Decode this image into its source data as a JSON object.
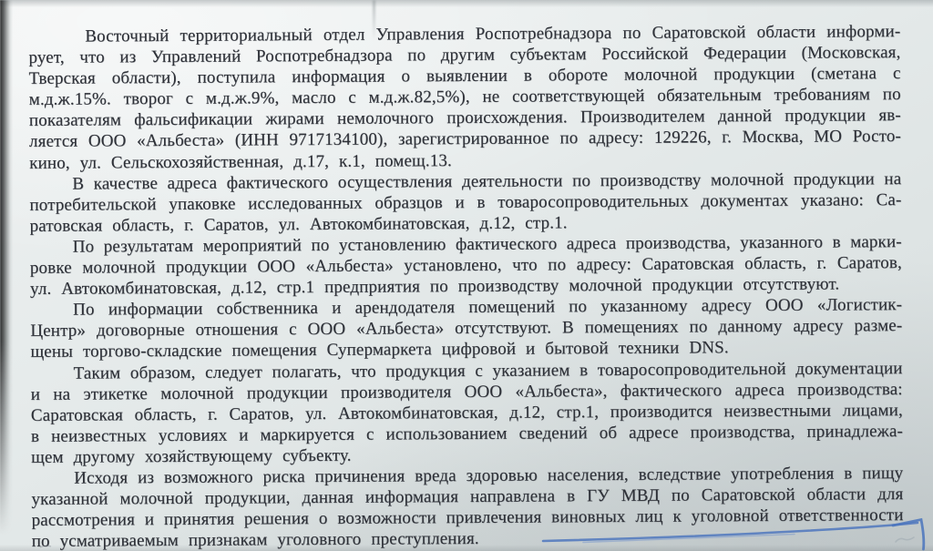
{
  "page": {
    "kind": "scanned-letter-photo",
    "paper_color": "#e4e9e9",
    "ink_color": "#2e3138",
    "pen_color": "#4a74bd"
  },
  "document": {
    "language": "ru",
    "paragraphs": [
      [
        "Восточный территориальный отдел Управления Роспотребнадзора по Саратовской области информи-",
        "рует, что из Управлений Роспотребнадзора по другим субъектам Российской Федерации (Московская,",
        "Тверская области), поступила информация о выявлении в обороте молочной продукции (сметана с",
        "м.д.ж.15%. творог с м.д.ж.9%, масло с м.д.ж.82,5%), не соответствующей обязательным требованиям по",
        "показателям фальсификации жирами немолочного происхождения. Производителем данной продукции яв-",
        "ляется ООО «Альбеста» (ИНН 9717134100), зарегистрированное по адресу: 129226, г. Москва, МО Росто-",
        "кино, ул. Сельскохозяйственная, д.17, к.1, помещ.13."
      ],
      [
        "В качестве адреса фактического осуществления деятельности по производству молочной продукции на",
        "потребительской упаковке исследованных образцов и в товаросопроводительных документах указано: Са-",
        "ратовская область, г. Саратов, ул. Автокомбинатовская, д.12, стр.1."
      ],
      [
        "По результатам мероприятий по установлению фактического адреса производства, указанного в марки-",
        "ровке молочной продукции ООО «Альбеста» установлено, что по адресу: Саратовская область, г. Саратов,",
        "ул. Автокомбинатовская, д.12, стр.1 предприятия по производству молочной продукции отсутствуют."
      ],
      [
        "По информации собственника и арендодателя помещений по указанному адресу ООО «Логистик-",
        "Центр» договорные отношения с ООО «Альбеста» отсутствуют. В помещениях по данному адресу разме-",
        "щены торгово-складские помещения Супермаркета цифровой и бытовой техники DNS."
      ],
      [
        "Таким образом, следует полагать, что продукция с указанием в товаросопроводительной документации",
        "и на этикетке молочной продукции производителя ООО «Альбеста», фактического адреса производства:",
        "Саратовская область, г. Саратов, ул. Автокомбинатовская, д.12, стр.1, производится неизвестными лицами,",
        "в неизвестных условиях и маркируется с использованием сведений об адресе производства, принадлежа-",
        "щем другому хозяйствующему субъекту."
      ],
      [
        "Исходя из возможного риска причинения вреда здоровью населения, вследствие употребления в пищу",
        "указанной молочной продукции, данная информация направлена в ГУ МВД по Саратовской области для",
        "рассмотрения и принятия решения о возможности привлечения виновных лиц к уголовной ответственности",
        "по усматриваемым признакам уголовного преступления."
      ]
    ]
  },
  "annotations": {
    "pen_underline_phrase": "уголовной ответственности",
    "pen_color": "#4a74bd"
  }
}
